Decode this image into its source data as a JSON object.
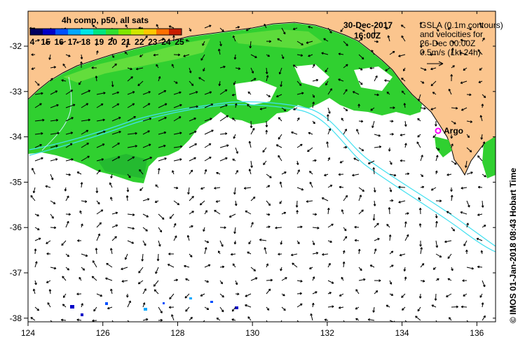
{
  "map": {
    "date": "30-Dec-2017",
    "time": "16:00Z",
    "colorbar": {
      "title": "4h comp, p50, all sats",
      "ticks": [
        "4",
        "15",
        "16",
        "17",
        "18",
        "19",
        "20",
        "21",
        "22",
        "23",
        "24",
        "25"
      ],
      "colors": [
        "#000060",
        "#0000c8",
        "#0050ff",
        "#00a8ff",
        "#00e6e6",
        "#00e680",
        "#30e030",
        "#80e600",
        "#d0e600",
        "#ffc800",
        "#ff7000",
        "#c81e00"
      ]
    },
    "legend_lines": [
      "GSLA (0.1m contours)",
      "and velocities for",
      "26-Dec 00:00Z",
      "0.5m/s (1kt 24h)"
    ],
    "station": "Argo",
    "credit": "© IMOS 01-Jan-2018 08:43 Hobart Time",
    "x_ticks": [
      "124",
      "126",
      "128",
      "130",
      "132",
      "134",
      "136"
    ],
    "y_ticks": [
      "-32",
      "-33",
      "-34",
      "-35",
      "-36",
      "-37",
      "-38"
    ],
    "colors": {
      "land": "#fbc58e",
      "sst_main": "#30d030",
      "sst_light": "#60e040",
      "sst_dark": "#20b030",
      "contour": "#40e0f0",
      "argo": "#ff00ff"
    }
  }
}
